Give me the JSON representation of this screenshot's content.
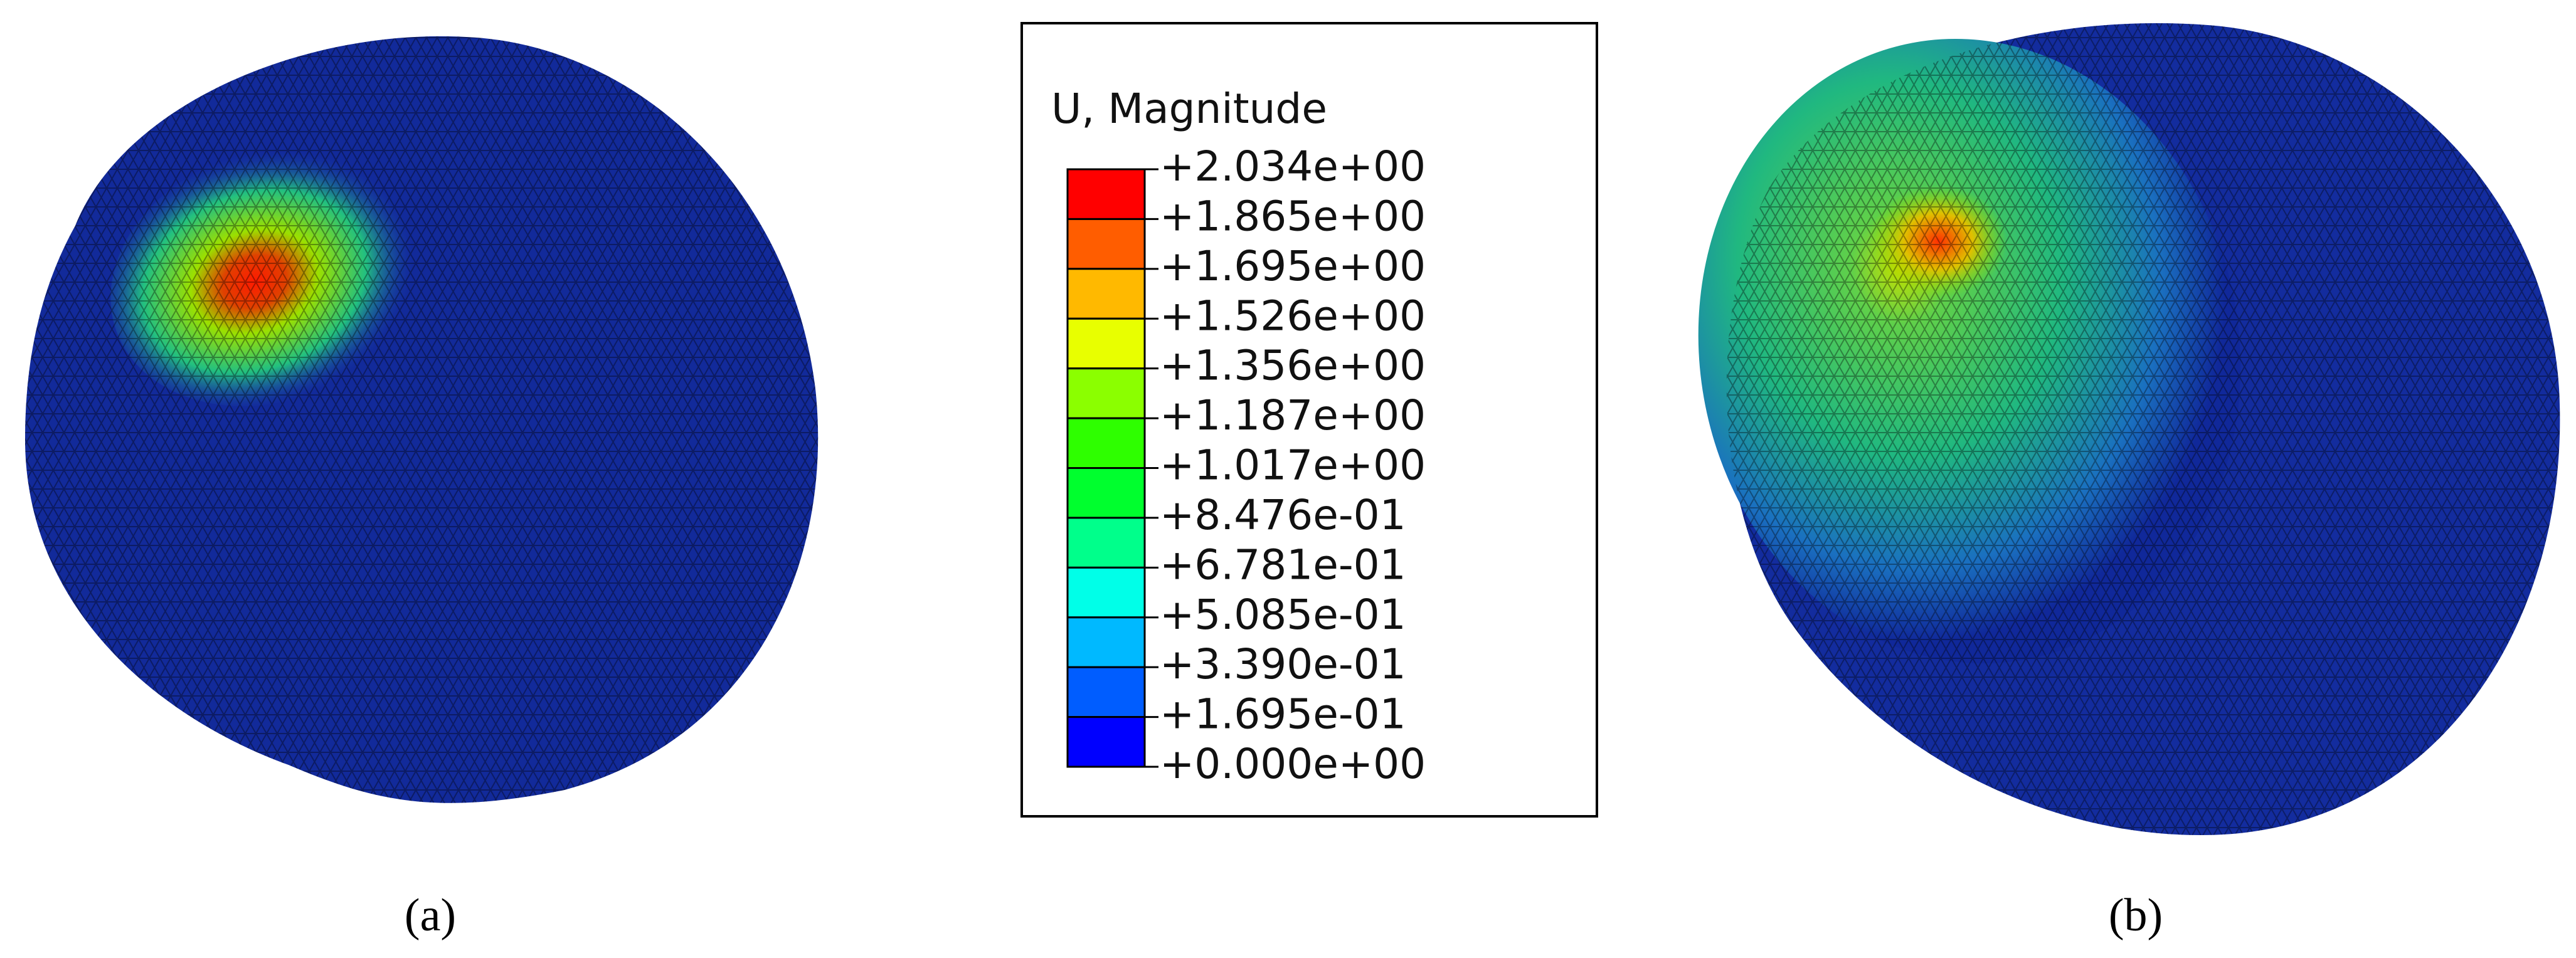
{
  "legend": {
    "title": "U, Magnitude",
    "labels": [
      "+2.034e+00",
      "+1.865e+00",
      "+1.695e+00",
      "+1.526e+00",
      "+1.356e+00",
      "+1.187e+00",
      "+1.017e+00",
      "+8.476e-01",
      "+6.781e-01",
      "+5.085e-01",
      "+3.390e-01",
      "+1.695e-01",
      "+0.000e+00"
    ],
    "colors": [
      "#ff0000",
      "#ff5d00",
      "#ffb900",
      "#e8ff00",
      "#8bff00",
      "#2eff00",
      "#00ff2e",
      "#00ff8b",
      "#00ffe8",
      "#00b9ff",
      "#005dff",
      "#0000ff"
    ]
  },
  "captions": {
    "a": "(a)",
    "b": "(b)"
  }
}
